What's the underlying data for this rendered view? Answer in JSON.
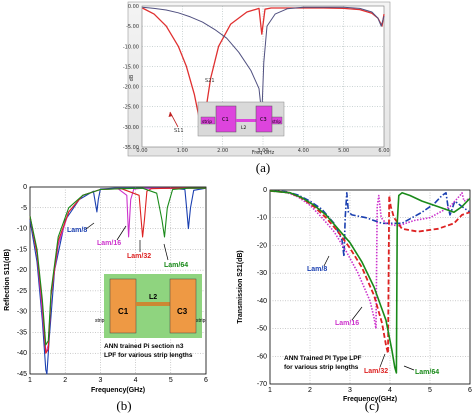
{
  "chart_data": [
    {
      "type": "line",
      "caption": "(a)",
      "xlabel": "Freq GHz",
      "ylabel": "dB",
      "xlim": [
        0,
        6
      ],
      "ylim": [
        -35,
        0
      ],
      "xticks": [
        "0.00",
        "1.00",
        "2.00",
        "3.00",
        "4.00",
        "5.00",
        "6.00"
      ],
      "yticks": [
        "0.00",
        "-5.00",
        "-10.00",
        "-15.00",
        "-20.00",
        "-25.00",
        "-30.00",
        "-35.00"
      ],
      "series": [
        {
          "name": "S11",
          "color": "#e03030",
          "x": [
            0.01,
            0.3,
            0.6,
            0.9,
            1.1,
            1.3,
            1.42,
            1.5,
            1.58,
            1.7,
            1.9,
            2.2,
            2.6,
            2.9,
            2.97,
            3.05,
            3.2,
            3.6,
            4.0,
            4.5,
            5.0,
            5.4,
            5.7,
            5.85,
            5.95,
            6.0
          ],
          "y": [
            -0.5,
            -2,
            -5,
            -10,
            -15,
            -22,
            -28,
            -31,
            -26,
            -18,
            -10,
            -4.5,
            -1.5,
            -0.6,
            -7,
            -0.8,
            -0.5,
            -0.5,
            -0.5,
            -0.5,
            -0.6,
            -0.9,
            -1.8,
            -3,
            -5,
            -2
          ]
        },
        {
          "name": "S21",
          "color": "#505080",
          "x": [
            0.01,
            0.3,
            0.6,
            0.9,
            1.2,
            1.5,
            1.8,
            2.1,
            2.4,
            2.7,
            2.9,
            2.97,
            3.02,
            3.1,
            3.3,
            3.6,
            4.0,
            4.5,
            5.0,
            5.4,
            5.7,
            5.85,
            5.93,
            6.0
          ],
          "y": [
            -0.3,
            -0.6,
            -1,
            -1.7,
            -2.7,
            -4,
            -5.8,
            -8,
            -11.5,
            -16,
            -20.5,
            -27,
            -14,
            -5,
            -2,
            -0.7,
            -0.3,
            -0.3,
            -0.3,
            -0.6,
            -1.5,
            -3,
            -5,
            -2.5
          ]
        }
      ],
      "annotations": [
        "S21",
        "S11"
      ],
      "inset": {
        "labels": [
          "strip",
          "C1",
          "L2",
          "C3",
          "strip"
        ]
      }
    },
    {
      "type": "line",
      "caption": "(b)",
      "xlabel": "Frequency(GHz)",
      "ylabel": "Reflection S11(dB)",
      "xlim": [
        1,
        6
      ],
      "ylim": [
        -45,
        0
      ],
      "xticks": [
        "1",
        "2",
        "3",
        "4",
        "5",
        "6"
      ],
      "yticks": [
        "0",
        "-5",
        "-10",
        "-15",
        "-20",
        "-25",
        "-30",
        "-35",
        "-40",
        "-45"
      ],
      "series": [
        {
          "name": "Lam/8",
          "color": "#1a3fb0",
          "x": [
            1,
            1.2,
            1.35,
            1.45,
            1.48,
            1.55,
            1.7,
            2.0,
            2.4,
            2.8,
            2.86,
            2.9,
            2.94,
            3.0,
            3.4,
            4.0,
            4.6,
            5.0,
            5.4,
            5.45,
            5.5,
            5.56,
            5.65,
            6.0
          ],
          "y": [
            -8,
            -18,
            -32,
            -44,
            -45,
            -36,
            -20,
            -8,
            -3,
            -1,
            -4,
            -6,
            -3,
            -0.5,
            -0.3,
            -0.3,
            -0.3,
            -0.3,
            -0.6,
            -5,
            -10,
            -5,
            -0.8,
            -0.3
          ]
        },
        {
          "name": "Lam/16",
          "color": "#cc33cc",
          "x": [
            1,
            1.2,
            1.35,
            1.45,
            1.52,
            1.6,
            1.8,
            2.1,
            2.5,
            3.0,
            3.5,
            3.75,
            3.8,
            3.86,
            3.95,
            4.2,
            5.0,
            6.0
          ],
          "y": [
            -7,
            -16,
            -30,
            -40,
            -38,
            -26,
            -14,
            -6,
            -2,
            -0.6,
            -0.4,
            -2,
            -12,
            -3,
            -0.5,
            -0.3,
            -0.3,
            -0.3
          ]
        },
        {
          "name": "Lam/32",
          "color": "#dd2222",
          "x": [
            1,
            1.2,
            1.35,
            1.45,
            1.52,
            1.6,
            1.8,
            2.1,
            2.5,
            3.0,
            3.6,
            4.1,
            4.2,
            4.25,
            4.32,
            4.45,
            5.0,
            6.0
          ],
          "y": [
            -7,
            -16,
            -28,
            -40,
            -39,
            -26,
            -13,
            -6,
            -2,
            -0.6,
            -0.4,
            -2,
            -12,
            -8,
            -1,
            -0.4,
            -0.3,
            -0.3
          ]
        },
        {
          "name": "Lam/64",
          "color": "#1a8a1a",
          "x": [
            1,
            1.2,
            1.35,
            1.45,
            1.52,
            1.6,
            1.8,
            2.1,
            2.5,
            3.0,
            3.6,
            4.2,
            4.6,
            4.75,
            4.82,
            4.9,
            5.05,
            5.5,
            6.0
          ],
          "y": [
            -7,
            -15,
            -27,
            -38,
            -37,
            -25,
            -12,
            -5,
            -2,
            -0.6,
            -0.4,
            -0.3,
            -1.5,
            -8,
            -12,
            -5,
            -0.6,
            -0.3,
            -0.3
          ]
        }
      ],
      "inset": {
        "labels": [
          "strip",
          "C1",
          "L2",
          "C3",
          "strip"
        ],
        "note": [
          "ANN trained Pi section n3",
          "LPF for various strip lengths"
        ]
      }
    },
    {
      "type": "line",
      "caption": "(c)",
      "xlabel": "Frequency(GHz)",
      "ylabel": "Transmission S21(dB)",
      "xlim": [
        1,
        6
      ],
      "ylim": [
        -70,
        0
      ],
      "xticks": [
        "1",
        "2",
        "3",
        "4",
        "5",
        "6"
      ],
      "yticks": [
        "0",
        "-10",
        "-20",
        "-30",
        "-40",
        "-50",
        "-60",
        "-70"
      ],
      "series": [
        {
          "name": "Lam/8",
          "color": "#1a3fb0",
          "x": [
            1,
            1.4,
            1.7,
            2.0,
            2.3,
            2.6,
            2.8,
            2.85,
            2.88,
            2.92,
            2.96,
            3.05,
            3.4,
            3.8,
            4.3,
            4.8,
            5.1,
            5.3,
            5.4,
            5.45,
            5.5,
            5.55,
            5.62,
            5.8,
            6.0
          ],
          "y": [
            -0.3,
            -0.6,
            -1.8,
            -4,
            -7,
            -12,
            -18,
            -24,
            -10,
            -1,
            -8,
            -9,
            -10,
            -12,
            -12,
            -8,
            -5,
            -2,
            -1,
            -6,
            -9,
            -7,
            -4,
            -6,
            -8
          ]
        },
        {
          "name": "Lam/16",
          "color": "#cc33cc",
          "x": [
            1,
            1.4,
            1.7,
            2.0,
            2.3,
            2.6,
            2.9,
            3.2,
            3.5,
            3.6,
            3.65,
            3.68,
            3.72,
            3.78,
            3.9,
            4.2,
            4.6,
            5.0,
            5.5,
            5.75,
            5.8,
            5.85,
            6.0
          ],
          "y": [
            -0.3,
            -0.8,
            -2.5,
            -5.5,
            -10,
            -15,
            -22,
            -30,
            -40,
            -46,
            -50,
            -6,
            -2,
            -10,
            -12,
            -13,
            -11,
            -10,
            -6,
            -2,
            -1,
            -4,
            -3
          ]
        },
        {
          "name": "Lam/32",
          "color": "#dd2222",
          "x": [
            1,
            1.5,
            1.8,
            2.1,
            2.4,
            2.7,
            3.0,
            3.3,
            3.6,
            3.8,
            3.9,
            3.95,
            3.98,
            4.02,
            4.1,
            4.3,
            4.7,
            5.2,
            5.6,
            5.8,
            6.0
          ],
          "y": [
            -0.3,
            -1,
            -3,
            -6,
            -10,
            -15,
            -21,
            -28,
            -38,
            -48,
            -56,
            -59,
            -2,
            -6,
            -10,
            -14,
            -15,
            -14,
            -12,
            -9,
            -8
          ]
        },
        {
          "name": "Lam/64",
          "color": "#1a8a1a",
          "x": [
            1,
            1.5,
            1.8,
            2.1,
            2.4,
            2.7,
            3.0,
            3.3,
            3.6,
            3.9,
            4.05,
            4.12,
            4.16,
            4.18,
            4.22,
            4.3,
            4.5,
            4.8,
            5.2,
            5.6,
            5.8,
            6.0
          ],
          "y": [
            -0.3,
            -1,
            -2.8,
            -5.5,
            -9,
            -14,
            -19,
            -26,
            -35,
            -47,
            -58,
            -64,
            -66,
            -12,
            -2,
            -1,
            -2,
            -4,
            -6,
            -8,
            -6,
            -3
          ]
        }
      ],
      "note": [
        "ANN Trained PI Type LPF",
        "for various strip lengths"
      ]
    }
  ]
}
